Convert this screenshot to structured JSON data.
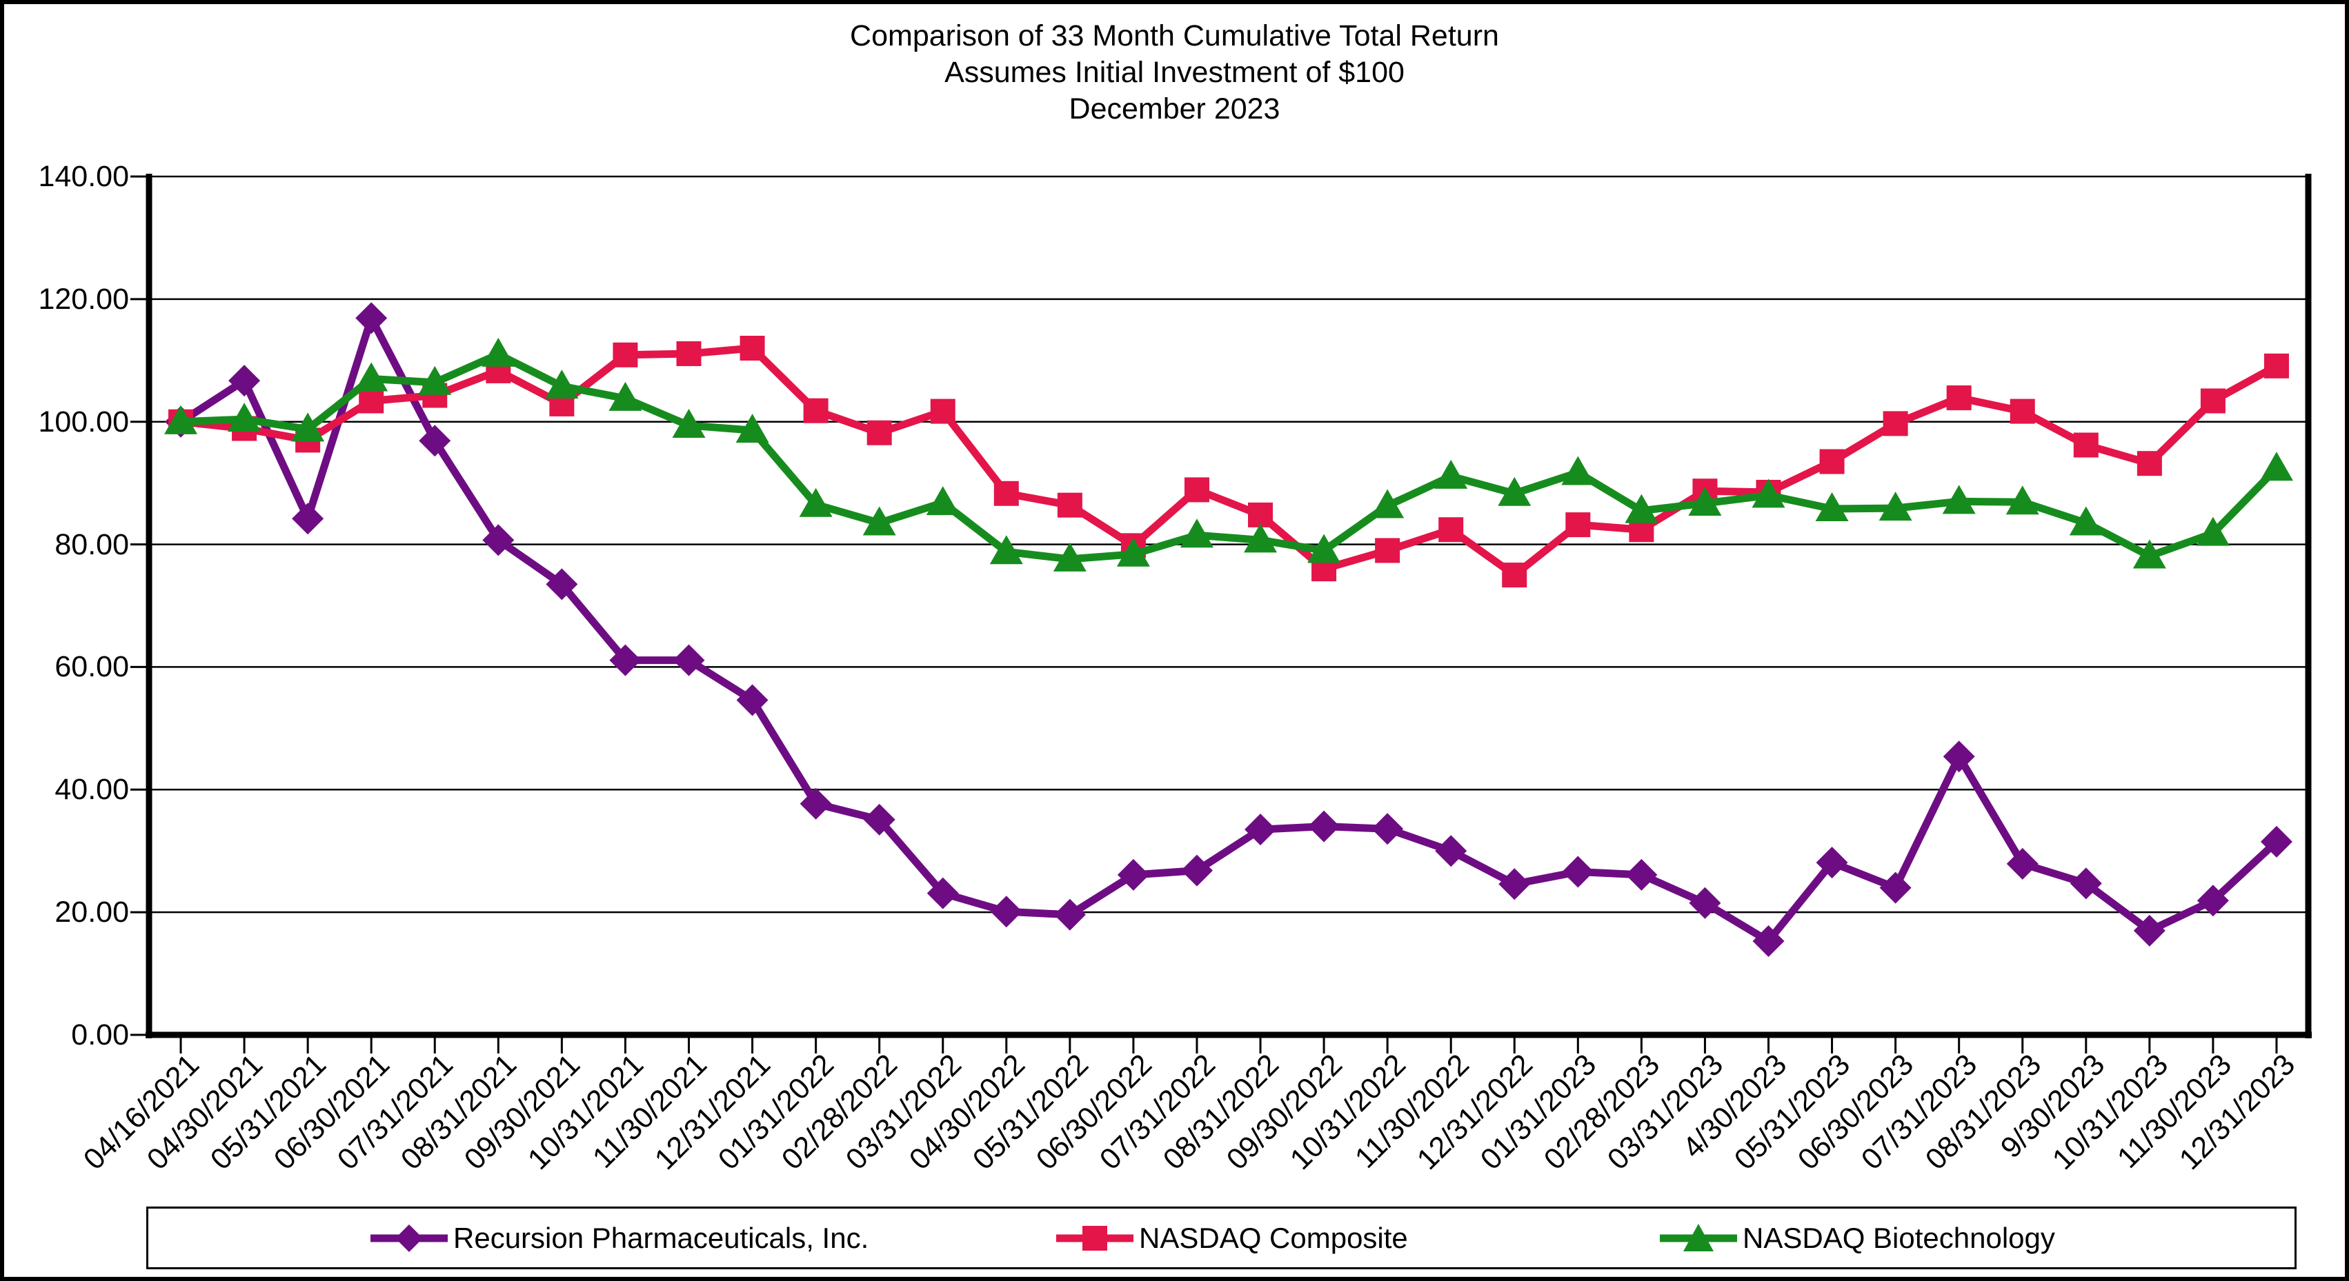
{
  "title": {
    "line1": "Comparison of 33 Month Cumulative Total Return",
    "line2": "Assumes Initial Investment of $100",
    "line3": "December 2023"
  },
  "colors": {
    "recursion": "#6E0D83",
    "nasdaq_composite": "#E31549",
    "nasdaq_biotech": "#178C1E",
    "axis": "#000000"
  },
  "y_axis": {
    "labels": [
      "0.00",
      "20.00",
      "40.00",
      "60.00",
      "80.00",
      "100.00",
      "120.00",
      "140.00"
    ],
    "min": 0,
    "max": 140,
    "step": 20
  },
  "chart_data": {
    "type": "line",
    "title": "Comparison of 33 Month Cumulative Total Return",
    "subtitle": "Assumes Initial Investment of $100",
    "period_label": "December 2023",
    "ylim": [
      0,
      140
    ],
    "y_tick_step": 20,
    "grid": true,
    "legend_position": "bottom",
    "categories": [
      "04/16/2021",
      "04/30/2021",
      "05/31/2021",
      "06/30/2021",
      "07/31/2021",
      "08/31/2021",
      "09/30/2021",
      "10/31/2021",
      "11/30/2021",
      "12/31/2021",
      "01/31/2022",
      "02/28/2022",
      "03/31/2022",
      "04/30/2022",
      "05/31/2022",
      "06/30/2022",
      "07/31/2022",
      "08/31/2022",
      "09/30/2022",
      "10/31/2022",
      "11/30/2022",
      "12/31/2022",
      "01/31/2023",
      "02/28/2023",
      "03/31/2023",
      "4/30/2023",
      "05/31/2023",
      "06/30/2023",
      "07/31/2023",
      "08/31/2023",
      "9/30/2023",
      "10/31/2023",
      "11/30/2023",
      "12/31/2023"
    ],
    "series": [
      {
        "name": "Recursion Pharmaceuticals, Inc.",
        "marker": "diamond",
        "color": "#6E0D83",
        "values": [
          100.0,
          106.7,
          84.2,
          116.9,
          96.9,
          80.7,
          73.5,
          61.1,
          61.1,
          54.6,
          37.7,
          35.1,
          23.1,
          20.1,
          19.6,
          26.1,
          26.8,
          33.5,
          34.0,
          33.6,
          30.0,
          24.6,
          26.6,
          26.1,
          21.5,
          15.3,
          28.1,
          24.0,
          45.4,
          27.9,
          24.7,
          17.0,
          21.9,
          31.5
        ]
      },
      {
        "name": "NASDAQ Composite",
        "marker": "square",
        "color": "#E31549",
        "values": [
          100.0,
          98.9,
          97.0,
          103.4,
          104.3,
          108.3,
          102.9,
          110.9,
          111.1,
          112.0,
          101.8,
          98.2,
          101.7,
          88.3,
          86.4,
          79.8,
          88.9,
          84.8,
          76.0,
          79.0,
          82.4,
          75.0,
          83.2,
          82.4,
          88.7,
          88.5,
          93.5,
          99.7,
          103.9,
          101.7,
          96.2,
          93.2,
          103.4,
          109.1
        ]
      },
      {
        "name": "NASDAQ Biotechnology",
        "marker": "triangle",
        "color": "#178C1E",
        "values": [
          100.0,
          100.4,
          98.8,
          107.0,
          106.4,
          111.0,
          105.8,
          103.8,
          99.4,
          98.6,
          86.5,
          83.5,
          86.8,
          78.8,
          77.6,
          78.4,
          81.5,
          80.7,
          79.0,
          86.3,
          91.1,
          88.3,
          91.7,
          85.5,
          86.7,
          88.0,
          85.8,
          85.9,
          87.0,
          86.9,
          83.5,
          78.1,
          81.8,
          92.4
        ]
      }
    ]
  },
  "legend": {
    "items": [
      {
        "label": "Recursion Pharmaceuticals, Inc."
      },
      {
        "label": "NASDAQ Composite"
      },
      {
        "label": "NASDAQ Biotechnology"
      }
    ]
  }
}
